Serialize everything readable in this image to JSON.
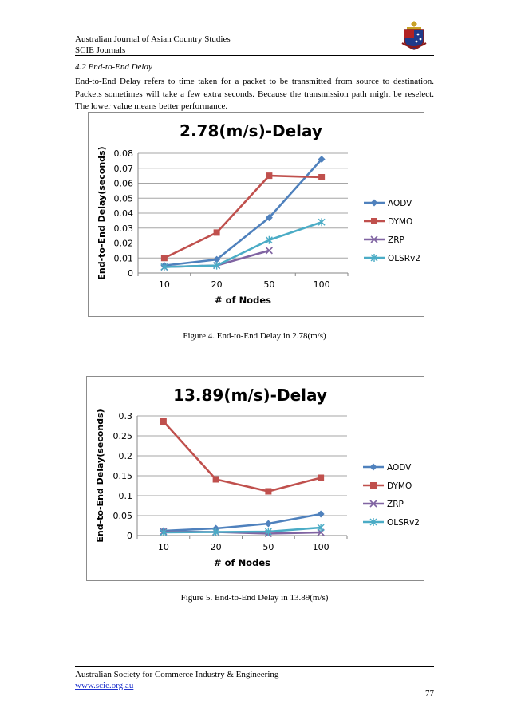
{
  "header": {
    "journal": "Australian Journal of Asian Country Studies",
    "publisher": "SCIE Journals"
  },
  "section": {
    "title": "4.2 End-to-End Delay",
    "paragraph": "End-to-End Delay refers to time taken for a packet to be transmitted from source to destination. Packets sometimes will take a few extra seconds. Because the transmission path might be reselect. The lower value means better performance."
  },
  "figures": [
    {
      "caption": "Figure 4. End-to-End Delay in 2.78(m/s)"
    },
    {
      "caption": "Figure 5. End-to-End Delay in 13.89(m/s)"
    }
  ],
  "chart_data": [
    {
      "type": "line",
      "title": "2.78(m/s)-Delay",
      "xlabel": "# of Nodes",
      "ylabel": "End-to-End  Delay(seconds)",
      "categories": [
        "10",
        "20",
        "50",
        "100"
      ],
      "ylim": [
        0,
        0.08
      ],
      "yticks": [
        "0",
        "0.01",
        "0.02",
        "0.03",
        "0.04",
        "0.05",
        "0.06",
        "0.07",
        "0.08"
      ],
      "grid": true,
      "legend": "right",
      "series": [
        {
          "name": "AODV",
          "values": [
            0.005,
            0.009,
            0.037,
            0.076
          ],
          "color": "#4f81bd",
          "marker": "diamond"
        },
        {
          "name": "DYMO",
          "values": [
            0.01,
            0.027,
            0.065,
            0.064
          ],
          "color": "#c0504d",
          "marker": "square"
        },
        {
          "name": "ZRP",
          "values": [
            0.004,
            0.005,
            0.015,
            null
          ],
          "color": "#8064a2",
          "marker": "x"
        },
        {
          "name": "OLSRv2",
          "values": [
            0.004,
            0.005,
            0.022,
            0.034
          ],
          "color": "#4bacc6",
          "marker": "star"
        }
      ]
    },
    {
      "type": "line",
      "title": "13.89(m/s)-Delay",
      "xlabel": "# of Nodes",
      "ylabel": "End-to-End  Delay(seconds)",
      "categories": [
        "10",
        "20",
        "50",
        "100"
      ],
      "ylim": [
        0,
        0.3
      ],
      "yticks": [
        "0",
        "0.05",
        "0.1",
        "0.15",
        "0.2",
        "0.25",
        "0.3"
      ],
      "grid": true,
      "legend": "right",
      "series": [
        {
          "name": "AODV",
          "values": [
            0.012,
            0.018,
            0.03,
            0.054
          ],
          "color": "#4f81bd",
          "marker": "diamond"
        },
        {
          "name": "DYMO",
          "values": [
            0.286,
            0.141,
            0.111,
            0.145
          ],
          "color": "#c0504d",
          "marker": "square"
        },
        {
          "name": "ZRP",
          "values": [
            0.01,
            0.009,
            0.005,
            0.008
          ],
          "color": "#8064a2",
          "marker": "x"
        },
        {
          "name": "OLSRv2",
          "values": [
            0.008,
            0.009,
            0.01,
            0.02
          ],
          "color": "#4bacc6",
          "marker": "star"
        }
      ]
    }
  ],
  "footer": {
    "society": "Australian Society for Commerce Industry & Engineering",
    "url": "www.scie.org.au",
    "page": "77"
  }
}
